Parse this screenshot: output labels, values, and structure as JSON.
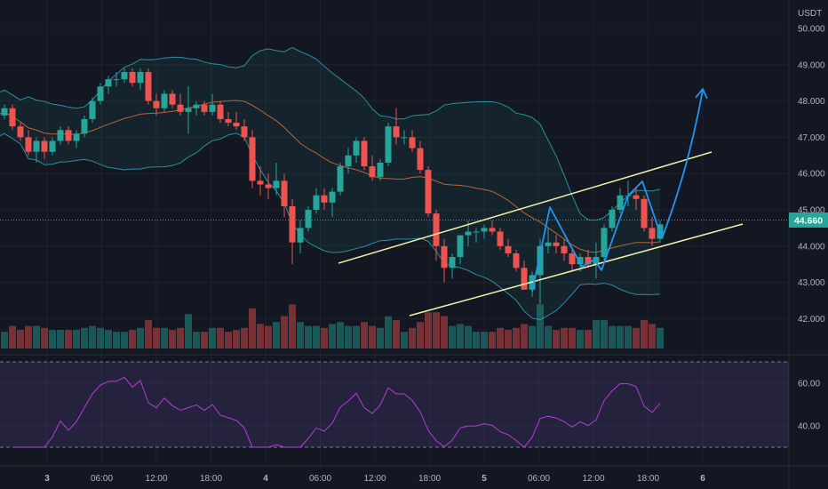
{
  "chart_data": {
    "type": "candlestick",
    "currency": "USDT",
    "last_price": "44.660",
    "price_axis_ticks": [
      "50.000",
      "49.000",
      "48.000",
      "47.000",
      "46.000",
      "45.000",
      "44.000",
      "43.000",
      "42.000"
    ],
    "price_tick_values": [
      50,
      49,
      48,
      47,
      46,
      45,
      44,
      43,
      42
    ],
    "time_axis_labels": [
      "3",
      "06:00",
      "12:00",
      "18:00",
      "4",
      "06:00",
      "12:00",
      "18:00",
      "5",
      "06:00",
      "12:00",
      "18:00",
      "6"
    ],
    "time_axis_hours": [
      0,
      6,
      12,
      18,
      24,
      30,
      36,
      42,
      48,
      54,
      60,
      66,
      72
    ],
    "rsi_axis_ticks": [
      "60.00",
      "40.00"
    ],
    "rsi_tick_values": [
      60,
      40
    ],
    "rsi_band": [
      70,
      30
    ],
    "candles_ohlc": [
      [
        47.8,
        48.0,
        47.4,
        47.6
      ],
      [
        47.6,
        47.9,
        47.5,
        47.8
      ],
      [
        47.8,
        47.9,
        47.2,
        47.3
      ],
      [
        47.3,
        47.4,
        46.9,
        47.0
      ],
      [
        47.0,
        47.2,
        46.5,
        46.6
      ],
      [
        46.6,
        47.0,
        46.3,
        46.9
      ],
      [
        46.9,
        47.0,
        46.4,
        46.6
      ],
      [
        46.6,
        47.0,
        46.5,
        46.9
      ],
      [
        46.9,
        47.3,
        46.8,
        47.2
      ],
      [
        47.2,
        47.3,
        46.8,
        46.9
      ],
      [
        46.9,
        47.2,
        46.7,
        47.1
      ],
      [
        47.1,
        47.6,
        47.0,
        47.5
      ],
      [
        47.5,
        48.1,
        47.4,
        48.0
      ],
      [
        48.0,
        48.5,
        47.9,
        48.4
      ],
      [
        48.4,
        48.7,
        48.2,
        48.6
      ],
      [
        48.6,
        48.8,
        48.4,
        48.6
      ],
      [
        48.6,
        48.9,
        48.5,
        48.8
      ],
      [
        48.8,
        48.9,
        48.4,
        48.5
      ],
      [
        48.5,
        48.9,
        48.3,
        48.8
      ],
      [
        48.8,
        48.9,
        47.9,
        48.0
      ],
      [
        48.0,
        48.2,
        47.6,
        47.8
      ],
      [
        47.8,
        48.3,
        47.7,
        48.2
      ],
      [
        48.2,
        48.3,
        47.8,
        47.9
      ],
      [
        47.9,
        48.2,
        47.6,
        47.7
      ],
      [
        47.7,
        48.4,
        47.1,
        47.8
      ],
      [
        47.8,
        48.0,
        47.6,
        47.9
      ],
      [
        47.9,
        48.0,
        47.6,
        47.7
      ],
      [
        47.7,
        48.2,
        47.6,
        47.9
      ],
      [
        47.9,
        48.0,
        47.4,
        47.5
      ],
      [
        47.5,
        47.7,
        47.3,
        47.4
      ],
      [
        47.4,
        47.7,
        47.2,
        47.3
      ],
      [
        47.3,
        47.5,
        46.9,
        47.0
      ],
      [
        47.0,
        47.2,
        45.6,
        45.8
      ],
      [
        45.8,
        46.2,
        45.4,
        45.7
      ],
      [
        45.7,
        46.0,
        45.3,
        45.6
      ],
      [
        45.6,
        46.3,
        45.4,
        45.8
      ],
      [
        45.8,
        46.0,
        44.8,
        45.1
      ],
      [
        45.1,
        45.3,
        43.5,
        44.1
      ],
      [
        44.1,
        44.7,
        43.8,
        44.5
      ],
      [
        44.5,
        45.1,
        44.4,
        45.0
      ],
      [
        45.0,
        45.6,
        44.9,
        45.4
      ],
      [
        45.4,
        45.6,
        45.0,
        45.2
      ],
      [
        45.2,
        45.6,
        44.8,
        45.5
      ],
      [
        45.5,
        46.3,
        45.4,
        46.2
      ],
      [
        46.2,
        46.7,
        46.0,
        46.5
      ],
      [
        46.5,
        47.0,
        46.3,
        46.9
      ],
      [
        46.9,
        47.0,
        46.1,
        46.2
      ],
      [
        46.2,
        46.5,
        45.8,
        45.9
      ],
      [
        45.9,
        46.4,
        45.8,
        46.3
      ],
      [
        46.3,
        47.4,
        46.2,
        47.3
      ],
      [
        47.3,
        47.8,
        46.8,
        47.0
      ],
      [
        47.0,
        47.2,
        46.8,
        47.0
      ],
      [
        47.0,
        47.2,
        46.6,
        46.7
      ],
      [
        46.7,
        46.9,
        46.0,
        46.1
      ],
      [
        46.1,
        46.2,
        44.8,
        44.9
      ],
      [
        44.9,
        45.0,
        43.6,
        44.0
      ],
      [
        44.0,
        44.2,
        43.0,
        43.4
      ],
      [
        43.4,
        43.8,
        43.1,
        43.7
      ],
      [
        43.7,
        44.3,
        43.5,
        44.3
      ],
      [
        44.3,
        44.7,
        44.0,
        44.4
      ],
      [
        44.4,
        44.5,
        44.1,
        44.4
      ],
      [
        44.4,
        44.6,
        44.2,
        44.5
      ],
      [
        44.5,
        44.7,
        44.3,
        44.4
      ],
      [
        44.4,
        44.5,
        43.9,
        44.0
      ],
      [
        44.0,
        44.2,
        43.7,
        43.8
      ],
      [
        43.8,
        43.9,
        43.3,
        43.4
      ],
      [
        43.4,
        43.6,
        42.8,
        42.8
      ],
      [
        42.8,
        43.3,
        42.6,
        43.2
      ],
      [
        43.2,
        44.2,
        42.4,
        44.0
      ],
      [
        44.0,
        44.5,
        43.8,
        44.1
      ],
      [
        44.1,
        44.3,
        43.8,
        44.0
      ],
      [
        44.0,
        44.2,
        43.6,
        43.8
      ],
      [
        43.8,
        43.9,
        43.3,
        43.5
      ],
      [
        43.5,
        43.8,
        43.3,
        43.7
      ],
      [
        43.7,
        43.9,
        43.4,
        43.5
      ],
      [
        43.5,
        44.1,
        43.1,
        43.7
      ],
      [
        43.7,
        44.6,
        43.6,
        44.5
      ],
      [
        44.5,
        45.1,
        44.4,
        45.0
      ],
      [
        45.0,
        45.6,
        44.9,
        45.4
      ],
      [
        45.4,
        45.8,
        45.1,
        45.4
      ],
      [
        45.4,
        45.6,
        45.0,
        45.3
      ],
      [
        45.3,
        45.4,
        44.4,
        44.5
      ],
      [
        44.5,
        44.8,
        44.0,
        44.2
      ],
      [
        44.2,
        44.7,
        44.1,
        44.6
      ]
    ]
  }
}
